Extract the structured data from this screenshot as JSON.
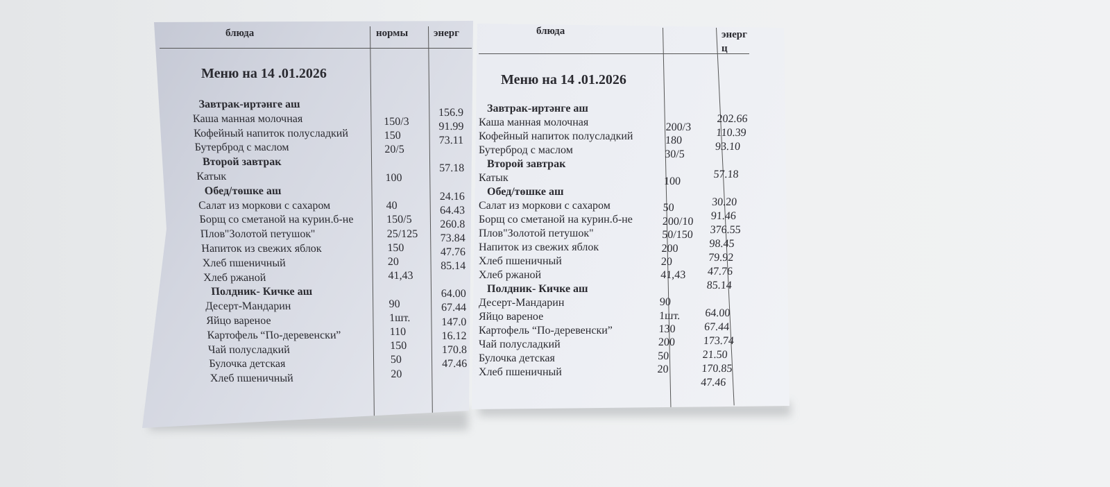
{
  "sheets": [
    {
      "header": {
        "dish": "блюда",
        "norm": "нормы",
        "energy": "энерг"
      },
      "title": "Меню на   14 .01.2026",
      "rows": [
        {
          "type": "heading",
          "text": "Завтрак-иртәнге аш"
        },
        {
          "type": "item",
          "text": "Каша манная молочная"
        },
        {
          "type": "item",
          "text": "Кофейный напиток полусладкий"
        },
        {
          "type": "item",
          "text": "Бутерброд с маслом"
        },
        {
          "type": "heading",
          "text": "Второй завтрак"
        },
        {
          "type": "item",
          "text": "Катык"
        },
        {
          "type": "heading",
          "text": "Обед/төшке аш"
        },
        {
          "type": "item",
          "text": "Салат из моркови с сахаром"
        },
        {
          "type": "item",
          "text": "Борщ со сметаной на курин.б-не"
        },
        {
          "type": "item",
          "text": "Плов\"Золотой петушок\""
        },
        {
          "type": "item",
          "text": "Напиток из свежих яблок"
        },
        {
          "type": "item",
          "text": "Хлеб пшеничный"
        },
        {
          "type": "item",
          "text": "Хлеб ржаной"
        },
        {
          "type": "heading",
          "text": "Полдник- Кичке аш"
        },
        {
          "type": "item",
          "text": "Десерт-Мандарин"
        },
        {
          "type": "item",
          "text": "Яйцо вареное"
        },
        {
          "type": "item",
          "text": "Картофель “По-деревенски”"
        },
        {
          "type": "item",
          "text": "Чай полусладкий"
        },
        {
          "type": "item",
          "text": "Булочка детская"
        },
        {
          "type": "item",
          "text": "Хлеб пшеничный"
        }
      ],
      "norms": [
        "150/3",
        "150",
        "20/5",
        "",
        "100",
        "",
        "40",
        "150/5",
        "25/125",
        "150",
        "20",
        "41,43",
        "",
        "90",
        "1шт.",
        "110",
        "150",
        "50",
        "20"
      ],
      "energy": [
        "156.9",
        "91.99",
        "73.11",
        "",
        "57.18",
        "",
        "24.16",
        "64.43",
        "260.8",
        "73.84",
        "47.76",
        "85.14",
        "",
        "64.00",
        "67.44",
        "147.0",
        "16.12",
        "170.8",
        "47.46"
      ]
    },
    {
      "header": {
        "dish": "блюда",
        "norm": "",
        "energy": "энерг",
        "energy_line2": "ц"
      },
      "title": "Меню на   14 .01.2026",
      "rows": [
        {
          "type": "heading",
          "text": "Завтрак-иртәнге аш"
        },
        {
          "type": "item",
          "text": "Каша манная молочная"
        },
        {
          "type": "item",
          "text": "Кофейный напиток полусладкий"
        },
        {
          "type": "item",
          "text": "Бутерброд с маслом"
        },
        {
          "type": "heading",
          "text": "Второй завтрак"
        },
        {
          "type": "item",
          "text": "Катык"
        },
        {
          "type": "heading",
          "text": "Обед/төшке аш"
        },
        {
          "type": "item",
          "text": "Салат из моркови с сахаром"
        },
        {
          "type": "item",
          "text": "Борщ со сметаной на курин.б-не"
        },
        {
          "type": "item",
          "text": "Плов\"Золотой петушок\""
        },
        {
          "type": "item",
          "text": "Напиток из свежих яблок"
        },
        {
          "type": "item",
          "text": "Хлеб пшеничный"
        },
        {
          "type": "item",
          "text": "Хлеб ржаной"
        },
        {
          "type": "heading",
          "text": "Полдник- Кичке аш"
        },
        {
          "type": "item",
          "text": "Десерт-Мандарин"
        },
        {
          "type": "item",
          "text": "Яйцо вареное"
        },
        {
          "type": "item",
          "text": "Картофель “По-деревенски”"
        },
        {
          "type": "item",
          "text": "Чай полусладкий"
        },
        {
          "type": "item",
          "text": "Булочка детская"
        },
        {
          "type": "item",
          "text": "Хлеб пшеничный"
        }
      ],
      "norms": [
        "200/3",
        "180",
        "30/5",
        "",
        "100",
        "",
        "50",
        "200/10",
        "50/150",
        "200",
        "20",
        "41,43",
        "",
        "90",
        "1шт.",
        "130",
        "200",
        "50",
        "20"
      ],
      "energy": [
        "202.66",
        "110.39",
        "93.10",
        "",
        "57.18",
        "",
        "30.20",
        "91.46",
        "376.55",
        "98.45",
        "79.92",
        "47.76",
        "85.14",
        "",
        "64.00",
        "67.44",
        "173.74",
        "21.50",
        "170.85",
        "47.46"
      ]
    }
  ]
}
